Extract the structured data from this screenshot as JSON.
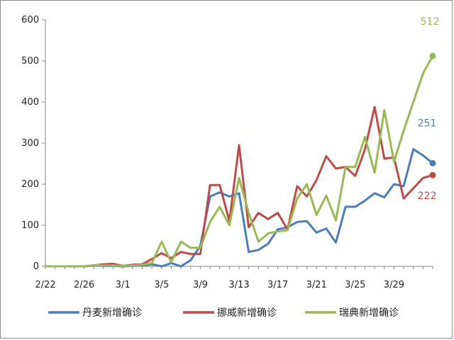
{
  "chart_data": {
    "type": "line",
    "title": "",
    "xlabel": "",
    "ylabel": "",
    "ylim": [
      0,
      600
    ],
    "yticks": [
      0,
      100,
      200,
      300,
      400,
      500,
      600
    ],
    "x": [
      "2/22",
      "2/23",
      "2/24",
      "2/25",
      "2/26",
      "2/27",
      "2/28",
      "2/29",
      "3/1",
      "3/2",
      "3/3",
      "3/4",
      "3/5",
      "3/6",
      "3/7",
      "3/8",
      "3/9",
      "3/10",
      "3/11",
      "3/12",
      "3/13",
      "3/14",
      "3/15",
      "3/16",
      "3/17",
      "3/18",
      "3/19",
      "3/20",
      "3/21",
      "3/22",
      "3/23",
      "3/24",
      "3/25",
      "3/26",
      "3/27",
      "3/28",
      "3/29",
      "3/30",
      "3/31",
      "4/1",
      "4/2"
    ],
    "xtick_labels": [
      "2/22",
      "2/26",
      "3/1",
      "3/5",
      "3/9",
      "3/13",
      "3/17",
      "3/21",
      "3/25",
      "3/29"
    ],
    "grid": false,
    "legend_position": "bottom",
    "series": [
      {
        "name": "丹麦新增确诊",
        "color": "#4a7ebb",
        "end_label": "251",
        "values": [
          0,
          0,
          0,
          0,
          0,
          2,
          1,
          1,
          0,
          1,
          2,
          5,
          0,
          8,
          0,
          15,
          50,
          170,
          180,
          170,
          178,
          35,
          40,
          55,
          90,
          95,
          108,
          110,
          82,
          92,
          58,
          145,
          145,
          160,
          178,
          168,
          200,
          195,
          285,
          270,
          251
        ]
      },
      {
        "name": "挪威新增确诊",
        "color": "#be4b48",
        "end_label": "222",
        "values": [
          0,
          0,
          0,
          0,
          0,
          2,
          5,
          6,
          1,
          4,
          5,
          18,
          32,
          20,
          35,
          30,
          30,
          198,
          198,
          110,
          295,
          95,
          130,
          115,
          130,
          90,
          195,
          170,
          210,
          268,
          238,
          242,
          220,
          285,
          388,
          262,
          265,
          165,
          190,
          215,
          222
        ]
      },
      {
        "name": "瑞典新增确诊",
        "color": "#98b954",
        "end_label": "512",
        "values": [
          0,
          0,
          0,
          0,
          0,
          3,
          2,
          2,
          1,
          2,
          4,
          8,
          60,
          10,
          60,
          45,
          45,
          108,
          145,
          100,
          215,
          130,
          60,
          80,
          85,
          88,
          165,
          200,
          125,
          172,
          112,
          242,
          242,
          315,
          228,
          380,
          255,
          330,
          400,
          470,
          512
        ]
      }
    ]
  }
}
